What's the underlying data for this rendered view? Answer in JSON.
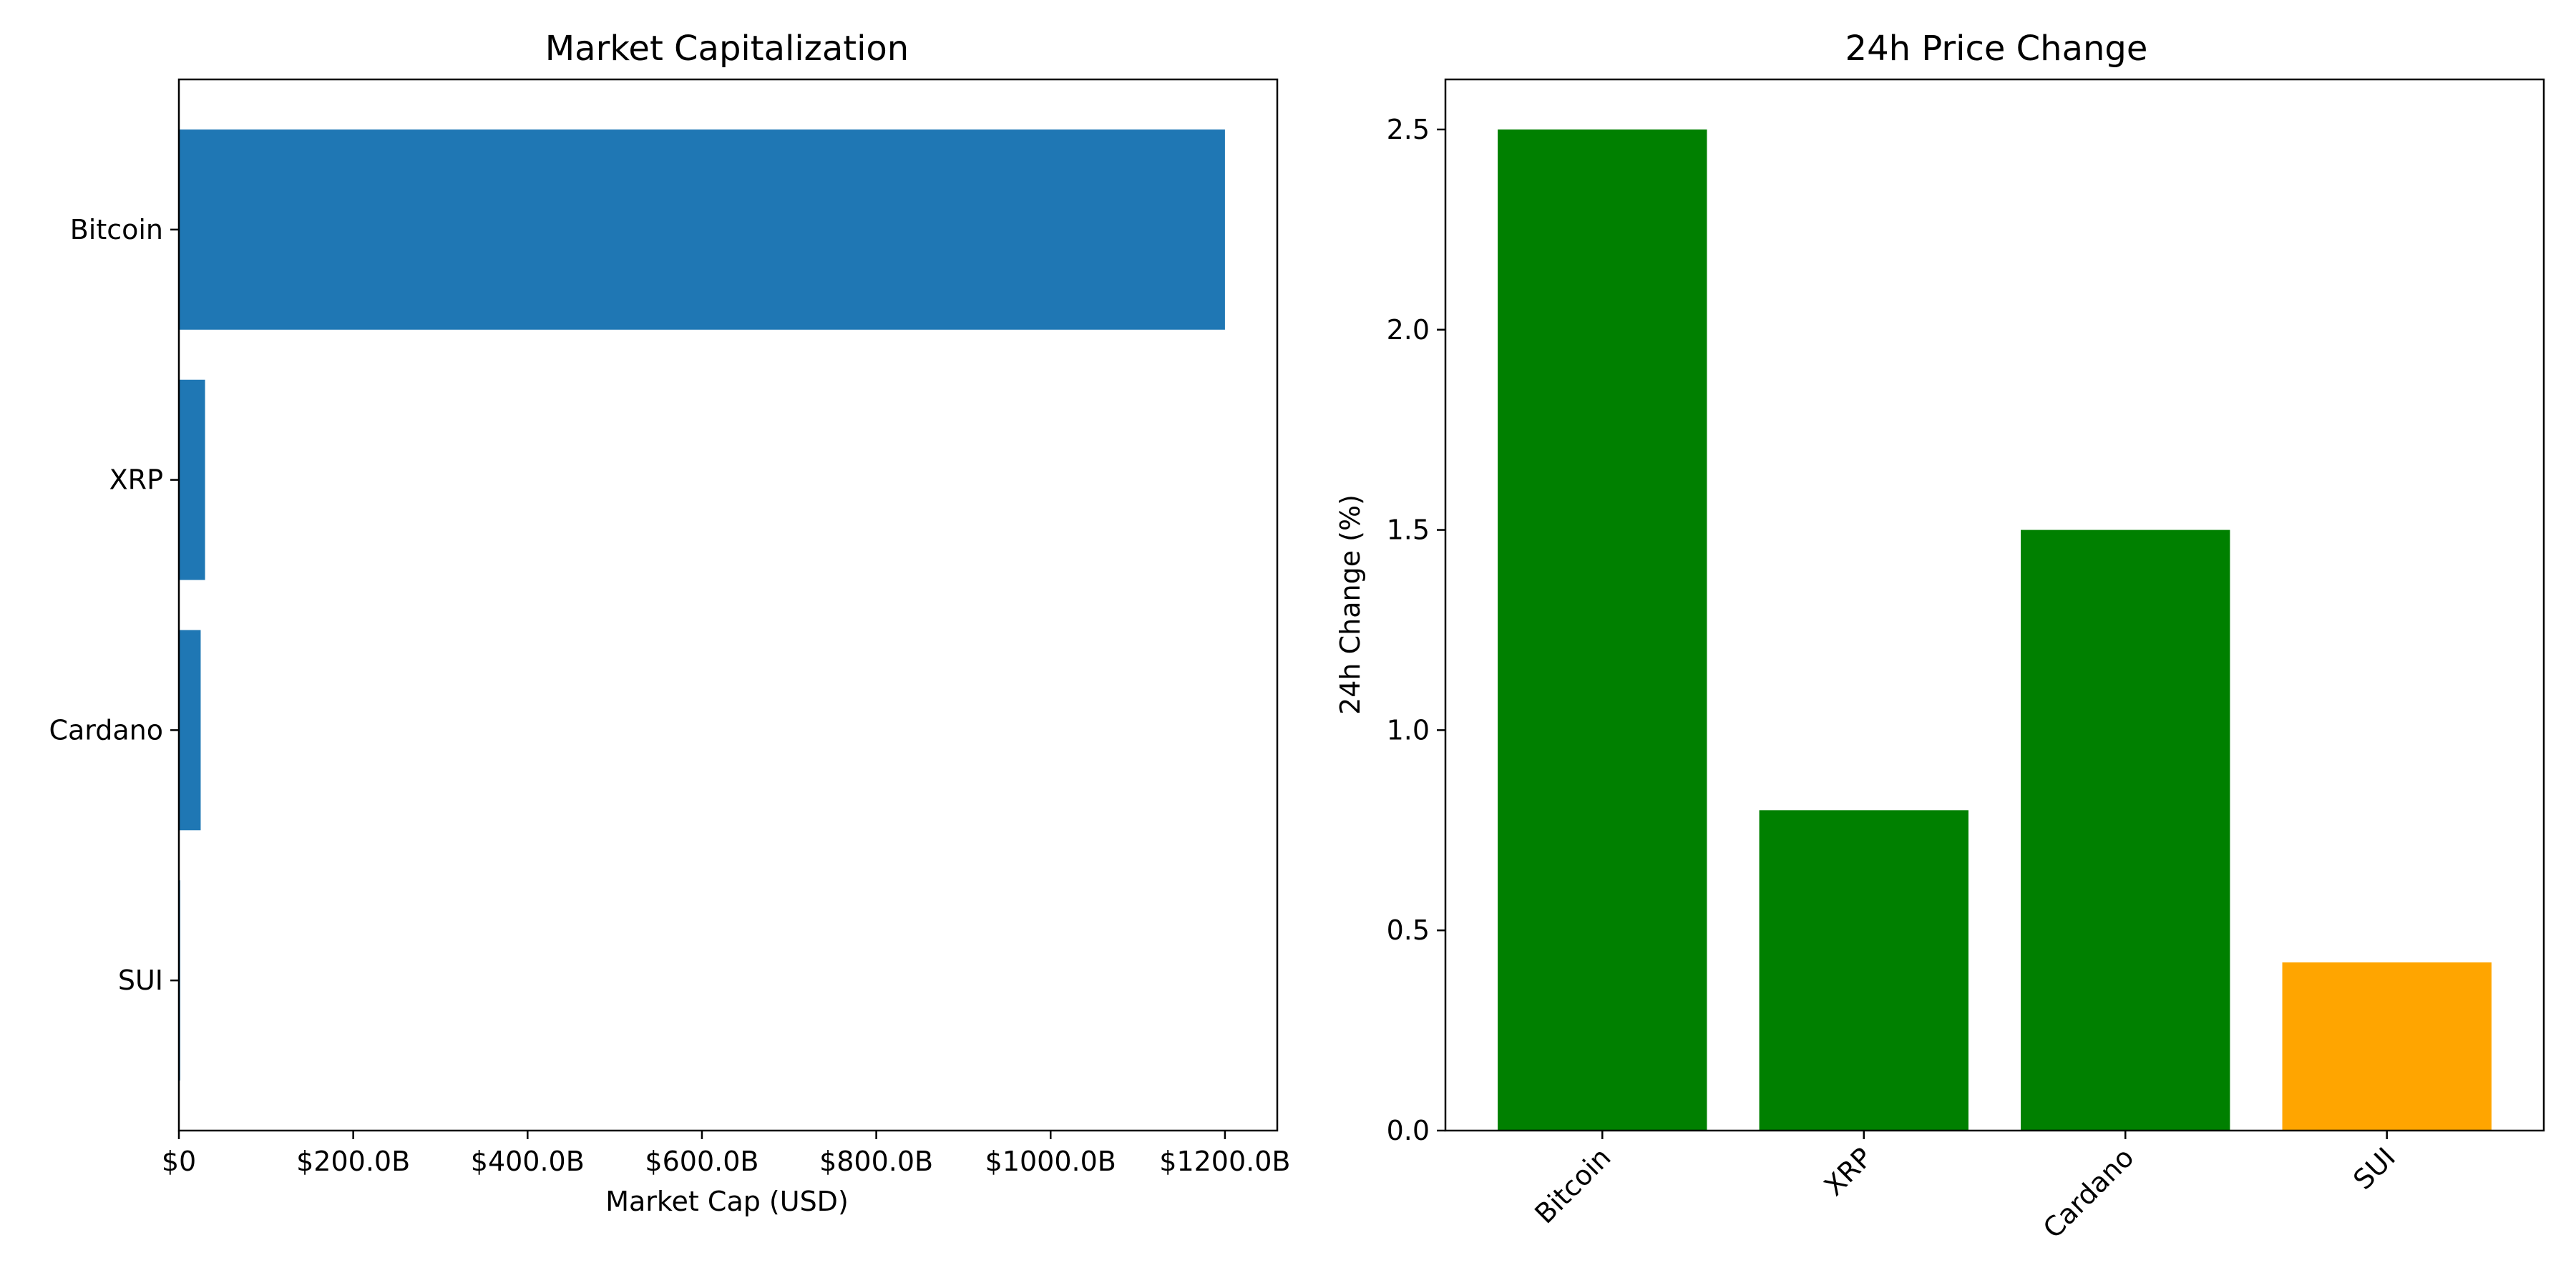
{
  "chart_data": [
    {
      "type": "bar",
      "orientation": "horizontal",
      "title": "Market Capitalization",
      "xlabel": "Market Cap (USD)",
      "ylabel": "",
      "categories": [
        "Bitcoin",
        "XRP",
        "Cardano",
        "SUI"
      ],
      "values": [
        1200000000000,
        30000000000,
        25000000000,
        1500000000
      ],
      "xlim": [
        0,
        1260000000000
      ],
      "xticks": [
        {
          "value": 0,
          "label": "$0"
        },
        {
          "value": 200000000000,
          "label": "$200.0B"
        },
        {
          "value": 400000000000,
          "label": "$400.0B"
        },
        {
          "value": 600000000000,
          "label": "$600.0B"
        },
        {
          "value": 800000000000,
          "label": "$800.0B"
        },
        {
          "value": 1000000000000,
          "label": "$1000.0B"
        },
        {
          "value": 1200000000000,
          "label": "$1200.0B"
        }
      ],
      "colors": [
        "#1f77b4",
        "#1f77b4",
        "#1f77b4",
        "#1f77b4"
      ],
      "grid": false
    },
    {
      "type": "bar",
      "orientation": "vertical",
      "title": "24h Price Change",
      "xlabel": "",
      "ylabel": "24h Change (%)",
      "categories": [
        "Bitcoin",
        "XRP",
        "Cardano",
        "SUI"
      ],
      "values": [
        2.5,
        0.8,
        1.5,
        0.42
      ],
      "ylim": [
        0,
        2.625
      ],
      "yticks": [
        {
          "value": 0,
          "label": "0.0"
        },
        {
          "value": 0.5,
          "label": "0.5"
        },
        {
          "value": 1.0,
          "label": "1.0"
        },
        {
          "value": 1.5,
          "label": "1.5"
        },
        {
          "value": 2.0,
          "label": "2.0"
        },
        {
          "value": 2.5,
          "label": "2.5"
        }
      ],
      "colors": [
        "#008000",
        "#008000",
        "#008000",
        "#ffa500"
      ],
      "xtick_rotation": 45,
      "grid": false
    }
  ]
}
